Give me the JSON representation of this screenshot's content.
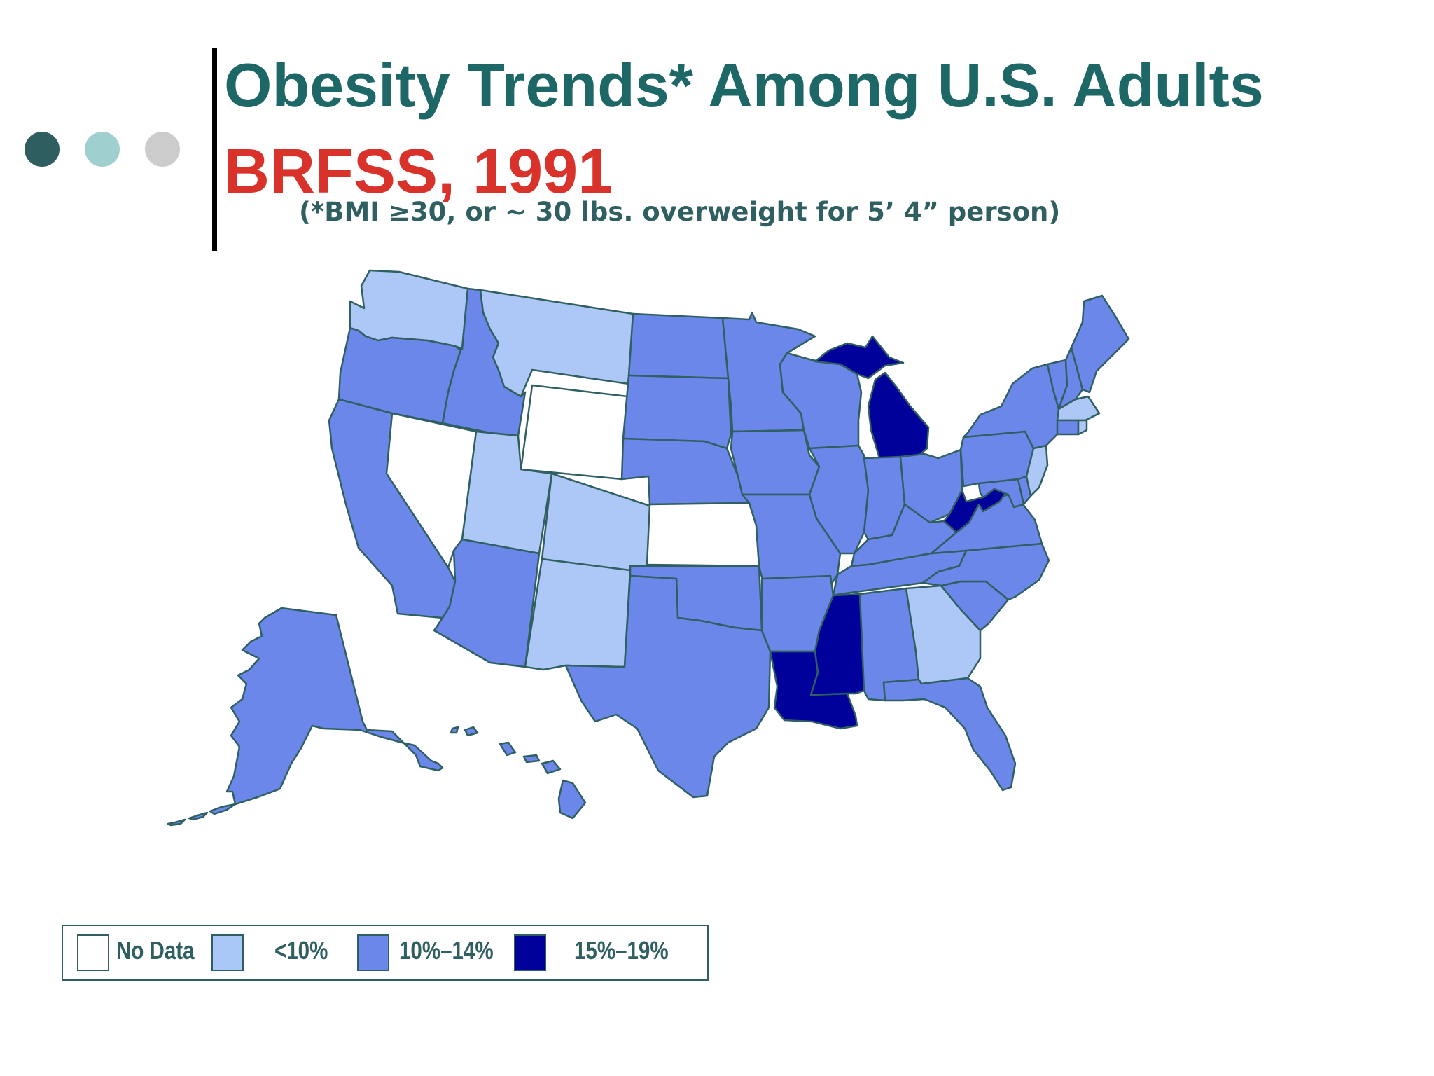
{
  "header": {
    "title": "Obesity Trends* Among U.S. Adults",
    "subtitle": "BRFSS, 1991",
    "note": "(*BMI ≥30, or ~ 30 lbs. overweight for 5’ 4” person)"
  },
  "colors": {
    "title": "#1d6866",
    "subtitle": "#d9322a",
    "note": "#2f5f60",
    "border": "#2f5f60",
    "dots": [
      "#2f5e60",
      "#9fcfcf",
      "#cccccc"
    ]
  },
  "legend": {
    "items": [
      {
        "label": "No Data",
        "color": "#ffffff"
      },
      {
        "label": "<10%",
        "color": "#a9c8f7"
      },
      {
        "label": "10%–14%",
        "color": "#6b87ea"
      },
      {
        "label": "15%–19%",
        "color": "#00009a"
      }
    ]
  },
  "map": {
    "fills": {
      "nodata": "#ffffff",
      "lt10": "#adc8f6",
      "10to14": "#6b87ea",
      "15to19": "#00009a"
    },
    "states": {
      "WA": "lt10",
      "OR": "10to14",
      "CA": "10to14",
      "NV": "nodata",
      "ID": "10to14",
      "MT": "lt10",
      "WY": "nodata",
      "UT": "lt10",
      "CO": "lt10",
      "AZ": "10to14",
      "NM": "lt10",
      "ND": "10to14",
      "SD": "10to14",
      "NE": "10to14",
      "KS": "nodata",
      "OK": "10to14",
      "TX": "10to14",
      "MN": "10to14",
      "IA": "10to14",
      "MO": "10to14",
      "AR": "10to14",
      "LA": "15to19",
      "WI": "10to14",
      "IL": "10to14",
      "MI": "15to19",
      "IN": "10to14",
      "OH": "10to14",
      "KY": "10to14",
      "TN": "10to14",
      "MS": "15to19",
      "AL": "10to14",
      "GA": "lt10",
      "FL": "10to14",
      "SC": "10to14",
      "NC": "10to14",
      "VA": "10to14",
      "WV": "15to19",
      "MD": "10to14",
      "DE": "10to14",
      "NJ": "lt10",
      "PA": "10to14",
      "NY": "10to14",
      "CT": "10to14",
      "RI": "lt10",
      "MA": "lt10",
      "VT": "10to14",
      "NH": "10to14",
      "ME": "10to14",
      "AK": "10to14",
      "HI": "10to14"
    }
  }
}
